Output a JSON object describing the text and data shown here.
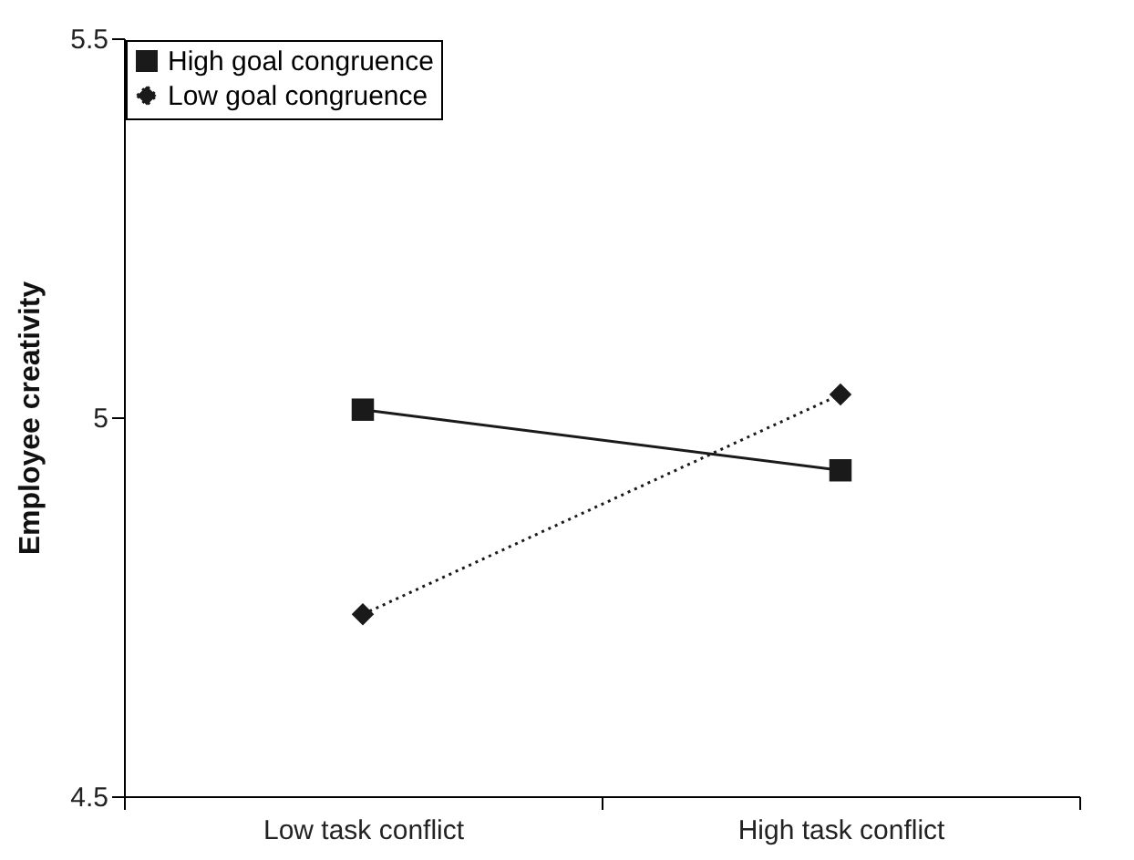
{
  "chart_data": {
    "type": "line",
    "ylabel": "Employee creativity",
    "categories": [
      "Low task conflict",
      "High task conflict"
    ],
    "series": [
      {
        "name": "High goal congruence",
        "color": "#1a1a1a",
        "marker": "square",
        "line_style": "solid",
        "values": [
          5.01,
          4.93
        ]
      },
      {
        "name": "Low goal congruence",
        "color": "#1a1a1a",
        "marker": "diamond",
        "line_style": "dotted",
        "values": [
          4.74,
          5.03
        ]
      }
    ],
    "ylim": [
      4.5,
      5.5
    ],
    "yticks": [
      4.5,
      5,
      5.5
    ],
    "grid": false,
    "legend": "top left"
  }
}
